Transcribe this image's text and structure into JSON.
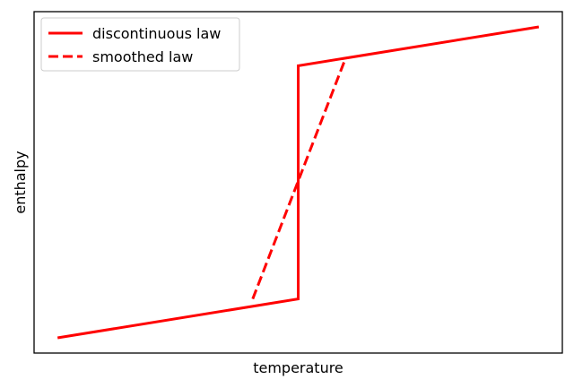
{
  "chart_data": {
    "type": "line",
    "xlabel": "temperature",
    "ylabel": "enthalpy",
    "title": "",
    "xlim": [
      -5.05,
      5.05
    ],
    "ylim": [
      -5.05,
      5.05
    ],
    "xticks": [],
    "yticks": [],
    "grid": false,
    "legend_position": "top-left",
    "colors": {
      "series": "#ff0000",
      "axes": "#000000",
      "legend_frame": "#cccccc"
    },
    "series": [
      {
        "name": "discontinuous law",
        "style": "solid",
        "x": [
          -4.6,
          0,
          0,
          4.6
        ],
        "y": [
          -4.6,
          -3.45,
          3.45,
          4.6
        ]
      },
      {
        "name": "smoothed law",
        "style": "dashed",
        "x": [
          -0.87,
          0.9
        ],
        "y": [
          -3.45,
          3.65
        ]
      }
    ]
  }
}
